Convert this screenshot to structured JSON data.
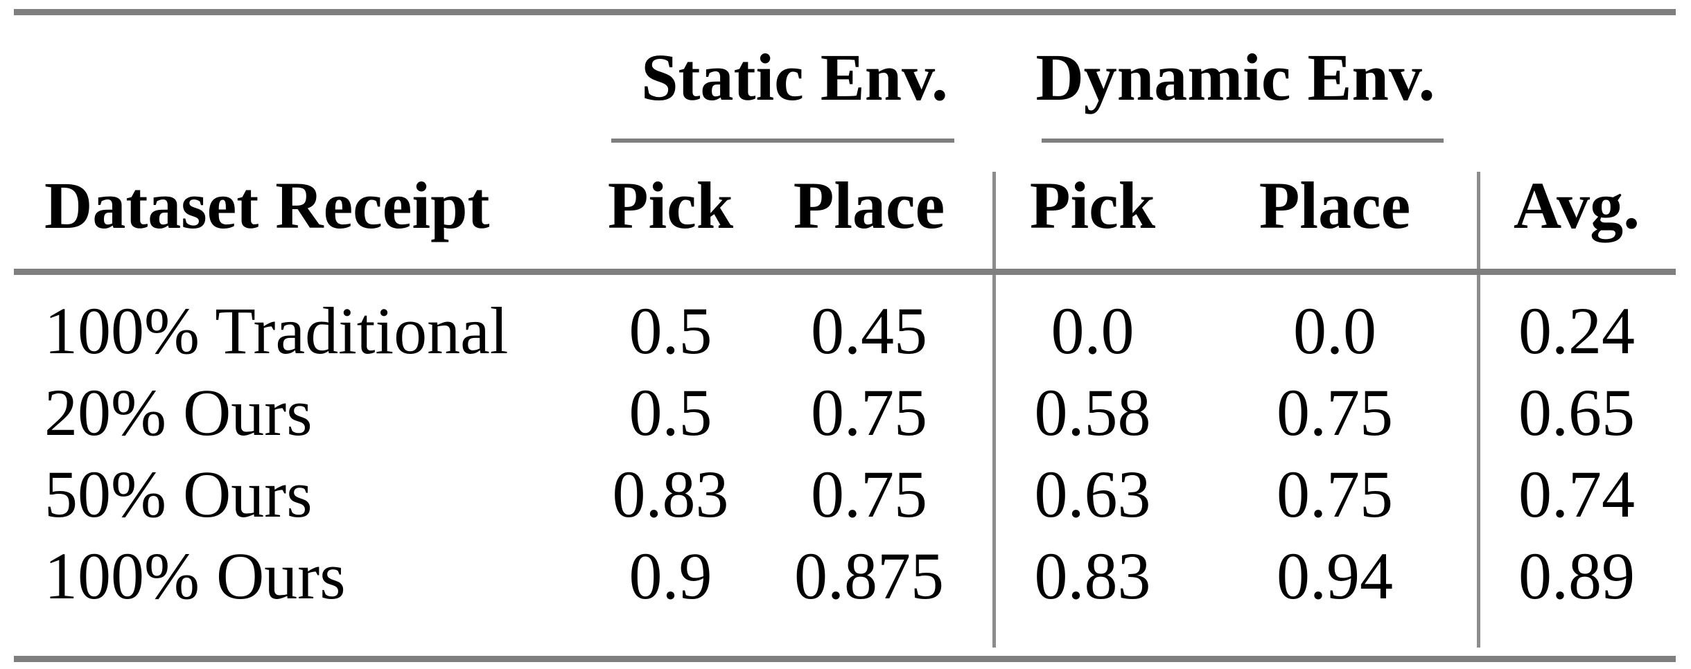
{
  "page": {
    "background": "#ffffff"
  },
  "table": {
    "title_groups": {
      "static": "Static Env.",
      "dynamic": "Dynamic Env."
    },
    "headers": {
      "row_label": "Dataset Receipt",
      "static_pick": "Pick",
      "static_place": "Place",
      "dynamic_pick": "Pick",
      "dynamic_place": "Place",
      "avg": "Avg."
    },
    "rows": [
      {
        "label": "100% Traditional",
        "values": [
          "0.5",
          "0.45",
          "0.0",
          "0.0",
          "0.24"
        ]
      },
      {
        "label": "20% Ours",
        "values": [
          "0.5",
          "0.75",
          "0.58",
          "0.75",
          "0.65"
        ]
      },
      {
        "label": "50% Ours",
        "values": [
          "0.83",
          "0.75",
          "0.63",
          "0.75",
          "0.74"
        ]
      },
      {
        "label": "100% Ours",
        "values": [
          "0.9",
          "0.875",
          "0.83",
          "0.94",
          "0.89"
        ]
      }
    ],
    "colors": {
      "rule": "#7f7f7f",
      "divider": "#8c8c8c",
      "text": "#000000"
    }
  },
  "chart_data": {
    "type": "table",
    "title": "",
    "column_groups": [
      {
        "label": "Static Env.",
        "columns": [
          "Pick",
          "Place"
        ]
      },
      {
        "label": "Dynamic Env.",
        "columns": [
          "Pick",
          "Place"
        ]
      }
    ],
    "columns": [
      "Dataset Receipt",
      "Static Env. Pick",
      "Static Env. Place",
      "Dynamic Env. Pick",
      "Dynamic Env. Place",
      "Avg."
    ],
    "rows": [
      [
        "100% Traditional",
        0.5,
        0.45,
        0.0,
        0.0,
        0.24
      ],
      [
        "20% Ours",
        0.5,
        0.75,
        0.58,
        0.75,
        0.65
      ],
      [
        "50% Ours",
        0.83,
        0.75,
        0.63,
        0.75,
        0.74
      ],
      [
        "100% Ours",
        0.9,
        0.875,
        0.83,
        0.94,
        0.89
      ]
    ]
  }
}
